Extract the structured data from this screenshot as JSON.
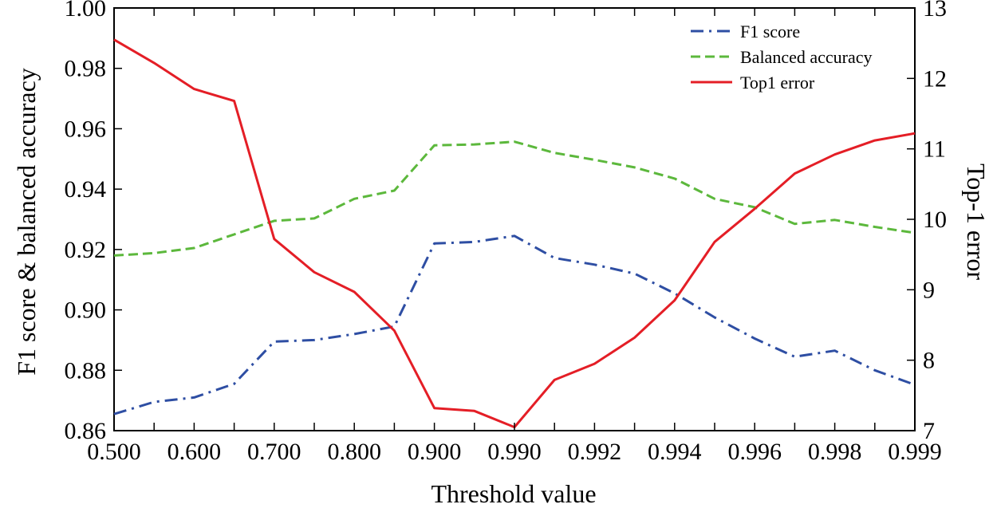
{
  "chart_data": {
    "type": "line",
    "title": "",
    "xlabel": "Threshold value",
    "ylabel_left": "F1 score & balanced accuracy",
    "ylabel_right": "Top-1 error",
    "categories": [
      "0.500",
      "0.550",
      "0.600",
      "0.650",
      "0.700",
      "0.750",
      "0.800",
      "0.850",
      "0.900",
      "0.950",
      "0.990",
      "0.991",
      "0.992",
      "0.993",
      "0.994",
      "0.995",
      "0.996",
      "0.997",
      "0.998",
      "0.9985",
      "0.999"
    ],
    "x_tick_labels": [
      "0.500",
      "0.600",
      "0.700",
      "0.800",
      "0.900",
      "0.990",
      "0.992",
      "0.994",
      "0.996",
      "0.998",
      "0.999"
    ],
    "y_left": {
      "lim": [
        0.86,
        1.0
      ],
      "ticks": [
        "0.86",
        "0.88",
        "0.90",
        "0.92",
        "0.94",
        "0.96",
        "0.98",
        "1.00"
      ]
    },
    "y_right": {
      "lim": [
        7,
        13
      ],
      "ticks": [
        "7",
        "8",
        "9",
        "10",
        "11",
        "12",
        "13"
      ]
    },
    "series": [
      {
        "name": "F1 score",
        "axis": "left",
        "color": "#2e4ea3",
        "dash": "dashdot",
        "values": [
          0.8655,
          0.8695,
          0.871,
          0.8755,
          0.8895,
          0.89,
          0.892,
          0.8945,
          0.922,
          0.9225,
          0.9245,
          0.9172,
          0.915,
          0.912,
          0.9055,
          0.8975,
          0.8905,
          0.8845,
          0.8865,
          0.88,
          0.8752
        ]
      },
      {
        "name": "Balanced accuracy",
        "axis": "left",
        "color": "#5cb83c",
        "dash": "dashed",
        "values": [
          0.918,
          0.9188,
          0.9205,
          0.925,
          0.9295,
          0.9303,
          0.9368,
          0.9395,
          0.9545,
          0.9548,
          0.9557,
          0.952,
          0.9497,
          0.9472,
          0.9435,
          0.9368,
          0.934,
          0.9285,
          0.9298,
          0.9275,
          0.9255
        ]
      },
      {
        "name": "Top1 error",
        "axis": "right",
        "color": "#e41e26",
        "dash": "solid",
        "values": [
          12.55,
          12.22,
          11.85,
          11.68,
          9.72,
          9.25,
          8.97,
          8.42,
          7.32,
          7.28,
          7.05,
          7.72,
          7.95,
          8.32,
          8.85,
          9.68,
          10.15,
          10.65,
          10.92,
          11.12,
          11.22
        ]
      }
    ],
    "legend_position": "top-right",
    "grid": false
  }
}
